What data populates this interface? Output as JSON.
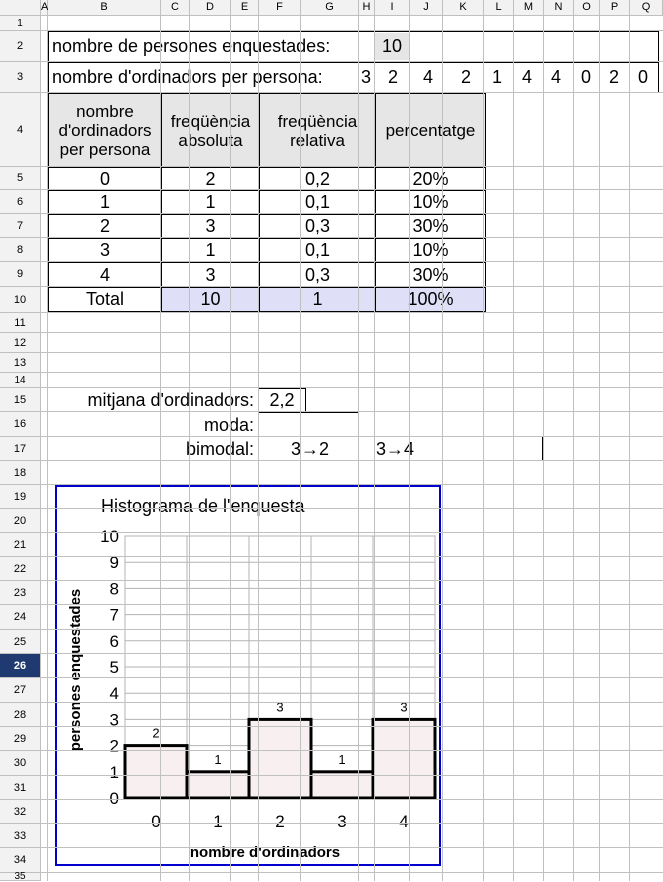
{
  "columns": [
    "A",
    "B",
    "C",
    "D",
    "E",
    "F",
    "G",
    "H",
    "I",
    "J",
    "K",
    "L",
    "M",
    "N",
    "O",
    "P",
    "Q"
  ],
  "rows": [
    "1",
    "2",
    "3",
    "4",
    "5",
    "6",
    "7",
    "8",
    "9",
    "10",
    "11",
    "12",
    "13",
    "14",
    "15",
    "16",
    "17",
    "18",
    "19",
    "20",
    "21",
    "22",
    "23",
    "24",
    "25",
    "26",
    "27",
    "28",
    "29",
    "30",
    "31",
    "32",
    "33",
    "34",
    "35"
  ],
  "selected_row": "26",
  "survey": {
    "respondents_label": "nombre de persones enquestades:",
    "respondents_value": "10",
    "computers_label": "nombre d'ordinadors per persona:",
    "computers_values": [
      "3",
      "2",
      "4",
      "2",
      "1",
      "4",
      "4",
      "0",
      "2",
      "0"
    ]
  },
  "table": {
    "headers": [
      "nombre d'ordinadors per persona",
      "freqüència absoluta",
      "freqüència relativa",
      "percentatge"
    ],
    "rows": [
      [
        "0",
        "2",
        "0,2",
        "20%"
      ],
      [
        "1",
        "1",
        "0,1",
        "10%"
      ],
      [
        "2",
        "3",
        "0,3",
        "30%"
      ],
      [
        "3",
        "1",
        "0,1",
        "10%"
      ],
      [
        "4",
        "3",
        "0,3",
        "30%"
      ]
    ],
    "total": [
      "Total",
      "10",
      "1",
      "100%"
    ]
  },
  "stats": {
    "mean_label": "mitjana d'ordinadors:",
    "mean_value": "2,2",
    "mode_label": "moda:",
    "mode_value": "",
    "bimodal_label": "bimodal:",
    "bimodal_value_1": "3→2",
    "bimodal_value_2": "3→4"
  },
  "colors": {
    "selected_row_header": "#1f3a70",
    "highlight_cell": "#dfe0f7",
    "chart_border": "#0000cc",
    "bar_fill": "#f7eff0"
  },
  "chart_data": {
    "type": "bar",
    "title": "Histograma de l'enquesta",
    "xlabel": "nombre d'ordinadors",
    "ylabel": "persones enquestades",
    "categories": [
      "0",
      "1",
      "2",
      "3",
      "4"
    ],
    "values": [
      2,
      1,
      3,
      1,
      3
    ],
    "ylim": [
      0,
      10
    ],
    "yticks": [
      "0",
      "1",
      "2",
      "3",
      "4",
      "5",
      "6",
      "7",
      "8",
      "9",
      "10"
    ],
    "grid": true
  }
}
